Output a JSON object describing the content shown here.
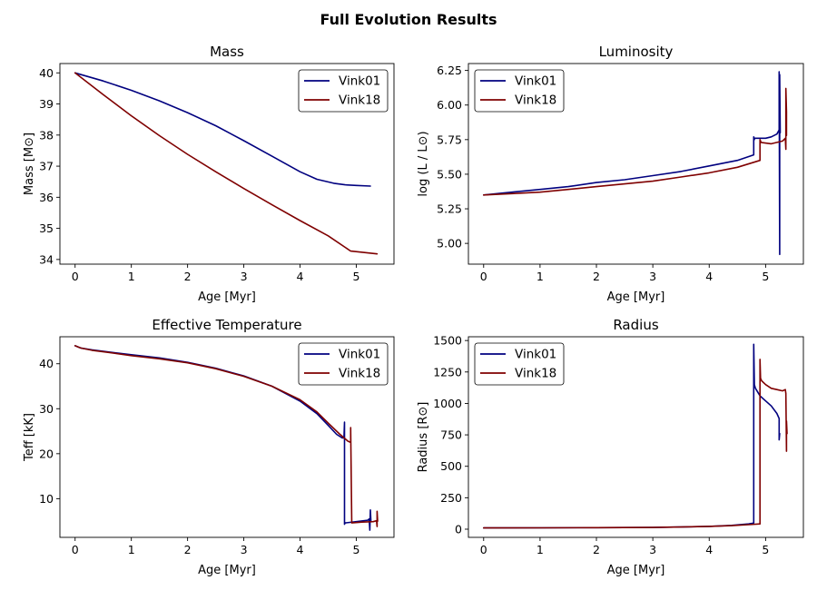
{
  "figure": {
    "title": "Full Evolution Results"
  },
  "colors": {
    "Vink01": "#00007f",
    "Vink18": "#7f0000"
  },
  "chart_data": [
    {
      "type": "line",
      "title": "Mass",
      "xlabel": "Age [Myr]",
      "ylabel": "Mass [M⊙]",
      "xlim": [
        -0.27,
        5.67
      ],
      "ylim": [
        33.85,
        40.3
      ],
      "xticks": [
        0,
        1,
        2,
        3,
        4,
        5
      ],
      "xtick_labels": [
        "0",
        "1",
        "2",
        "3",
        "4",
        "5"
      ],
      "yticks": [
        34,
        35,
        36,
        37,
        38,
        39,
        40
      ],
      "ytick_labels": [
        "34",
        "35",
        "36",
        "37",
        "38",
        "39",
        "40"
      ],
      "legend": "top-right",
      "grid": false,
      "series": [
        {
          "name": "Vink01",
          "color": "#00007f",
          "x": [
            0.0,
            0.5,
            1.0,
            1.5,
            2.0,
            2.5,
            3.0,
            3.5,
            4.0,
            4.3,
            4.6,
            4.8,
            5.0,
            5.25
          ],
          "y": [
            40.0,
            39.74,
            39.44,
            39.1,
            38.72,
            38.3,
            37.82,
            37.32,
            36.82,
            36.58,
            36.45,
            36.4,
            36.38,
            36.36
          ]
        },
        {
          "name": "Vink18",
          "color": "#7f0000",
          "x": [
            0.0,
            0.5,
            1.0,
            1.5,
            2.0,
            2.5,
            3.0,
            3.5,
            4.0,
            4.5,
            4.9,
            5.37
          ],
          "y": [
            40.0,
            39.3,
            38.62,
            37.98,
            37.38,
            36.82,
            36.28,
            35.76,
            35.25,
            34.76,
            34.27,
            34.18
          ]
        }
      ]
    },
    {
      "type": "line",
      "title": "Luminosity",
      "xlabel": "Age [Myr]",
      "ylabel": "log (L / L⊙)",
      "xlim": [
        -0.27,
        5.67
      ],
      "ylim": [
        4.85,
        6.3
      ],
      "xticks": [
        0,
        1,
        2,
        3,
        4,
        5
      ],
      "xtick_labels": [
        "0",
        "1",
        "2",
        "3",
        "4",
        "5"
      ],
      "yticks": [
        5.0,
        5.25,
        5.5,
        5.75,
        6.0,
        6.25
      ],
      "ytick_labels": [
        "5.00",
        "5.25",
        "5.50",
        "5.75",
        "6.00",
        "6.25"
      ],
      "legend": "top-left",
      "grid": false,
      "series": [
        {
          "name": "Vink01",
          "color": "#00007f",
          "x": [
            0.0,
            0.5,
            1.0,
            1.5,
            2.0,
            2.5,
            3.0,
            3.5,
            4.0,
            4.5,
            4.79,
            4.79,
            4.8,
            4.8,
            5.0,
            5.1,
            5.2,
            5.24,
            5.24,
            5.25,
            5.25,
            5.26
          ],
          "y": [
            5.35,
            5.37,
            5.39,
            5.41,
            5.44,
            5.46,
            5.49,
            5.52,
            5.56,
            5.6,
            5.64,
            5.77,
            5.75,
            5.76,
            5.76,
            5.77,
            5.79,
            5.82,
            6.24,
            4.92,
            6.22,
            5.8
          ]
        },
        {
          "name": "Vink18",
          "color": "#7f0000",
          "x": [
            0.0,
            0.5,
            1.0,
            1.5,
            2.0,
            2.5,
            3.0,
            3.5,
            4.0,
            4.5,
            4.9,
            4.9,
            4.92,
            5.1,
            5.2,
            5.3,
            5.35,
            5.36,
            5.36,
            5.37,
            5.37
          ],
          "y": [
            5.35,
            5.36,
            5.37,
            5.39,
            5.41,
            5.43,
            5.45,
            5.48,
            5.51,
            5.55,
            5.6,
            5.75,
            5.73,
            5.72,
            5.73,
            5.74,
            5.76,
            5.68,
            6.12,
            5.95,
            5.78
          ]
        }
      ]
    },
    {
      "type": "line",
      "title": "Effective Temperature",
      "xlabel": "Age [Myr]",
      "ylabel": "Teff [kK]",
      "xlim": [
        -0.27,
        5.67
      ],
      "ylim": [
        1.4,
        46.0
      ],
      "xticks": [
        0,
        1,
        2,
        3,
        4,
        5
      ],
      "xtick_labels": [
        "0",
        "1",
        "2",
        "3",
        "4",
        "5"
      ],
      "yticks": [
        10,
        20,
        30,
        40
      ],
      "ytick_labels": [
        "10",
        "20",
        "30",
        "40"
      ],
      "legend": "top-right",
      "grid": false,
      "series": [
        {
          "name": "Vink01",
          "color": "#00007f",
          "x": [
            0.0,
            0.1,
            0.3,
            0.6,
            1.0,
            1.5,
            2.0,
            2.5,
            3.0,
            3.5,
            4.0,
            4.3,
            4.5,
            4.65,
            4.75,
            4.78,
            4.79,
            4.79,
            4.8,
            5.0,
            5.2,
            5.23,
            5.24,
            5.25,
            5.26
          ],
          "y": [
            44.0,
            43.5,
            43.1,
            42.6,
            42.0,
            41.3,
            40.3,
            39.0,
            37.3,
            35.0,
            31.7,
            28.9,
            26.3,
            24.3,
            23.5,
            23.5,
            27.0,
            4.3,
            4.6,
            4.9,
            5.2,
            5.5,
            3.0,
            7.5,
            5.0
          ]
        },
        {
          "name": "Vink18",
          "color": "#7f0000",
          "x": [
            0.0,
            0.1,
            0.3,
            0.6,
            1.0,
            1.5,
            2.0,
            2.5,
            3.0,
            3.5,
            4.0,
            4.3,
            4.5,
            4.7,
            4.85,
            4.9,
            4.9,
            4.92,
            5.1,
            5.3,
            5.36,
            5.37,
            5.37,
            5.38
          ],
          "y": [
            44.0,
            43.5,
            43.0,
            42.5,
            41.8,
            41.1,
            40.2,
            38.9,
            37.2,
            35.0,
            32.0,
            29.3,
            26.8,
            24.4,
            22.8,
            22.5,
            25.8,
            4.6,
            4.8,
            4.9,
            5.1,
            3.8,
            7.2,
            5.0
          ]
        }
      ]
    },
    {
      "type": "line",
      "title": "Radius",
      "xlabel": "Age [Myr]",
      "ylabel": "Radius [R⊙]",
      "xlim": [
        -0.27,
        5.67
      ],
      "ylim": [
        -65.0,
        1530.0
      ],
      "xticks": [
        0,
        1,
        2,
        3,
        4,
        5
      ],
      "xtick_labels": [
        "0",
        "1",
        "2",
        "3",
        "4",
        "5"
      ],
      "yticks": [
        0,
        250,
        500,
        750,
        1000,
        1250,
        1500
      ],
      "ytick_labels": [
        "0",
        "250",
        "500",
        "750",
        "1000",
        "1250",
        "1500"
      ],
      "legend": "top-left",
      "grid": false,
      "series": [
        {
          "name": "Vink01",
          "color": "#00007f",
          "x": [
            0.0,
            1.0,
            2.0,
            3.0,
            3.5,
            4.0,
            4.4,
            4.7,
            4.79,
            4.79,
            4.8,
            4.82,
            4.9,
            5.0,
            5.1,
            5.2,
            5.24,
            5.24,
            5.25
          ],
          "y": [
            10,
            11,
            12,
            14,
            17,
            22,
            30,
            42,
            48,
            1470,
            1150,
            1120,
            1060,
            1020,
            980,
            920,
            880,
            710,
            760
          ]
        },
        {
          "name": "Vink18",
          "color": "#7f0000",
          "x": [
            0.0,
            1.0,
            2.0,
            3.0,
            3.5,
            4.0,
            4.4,
            4.7,
            4.9,
            4.9,
            4.91,
            4.93,
            5.0,
            5.1,
            5.2,
            5.3,
            5.35,
            5.36,
            5.37,
            5.37,
            5.38
          ],
          "y": [
            10,
            11,
            12,
            14,
            17,
            22,
            28,
            36,
            42,
            1350,
            1200,
            1180,
            1150,
            1120,
            1110,
            1100,
            1110,
            1080,
            620,
            860,
            760
          ]
        }
      ]
    }
  ]
}
